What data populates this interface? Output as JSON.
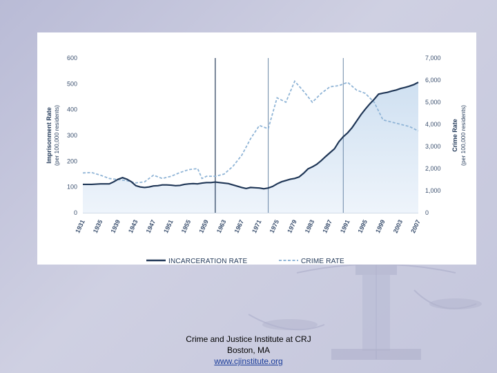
{
  "chart_data": {
    "type": "line",
    "y_left_ticks": [
      "600",
      "500",
      "400",
      "300",
      "200",
      "100",
      "0"
    ],
    "y_right_ticks": [
      "7,000",
      "6,000",
      "5,000",
      "4,000",
      "3,000",
      "2,000",
      "1,000",
      "0"
    ],
    "ylabel_left": "Imprisonment Rate",
    "ylabel_left_sub": "(per 100,000 residents)",
    "ylabel_right": "Crime Rate",
    "ylabel_right_sub": "(per 100,000 residents)",
    "ylim_left": [
      0,
      600
    ],
    "ylim_right": [
      0,
      7000
    ],
    "x_tick_labels": [
      "1931",
      "1935",
      "1939",
      "1943",
      "1947",
      "1951",
      "1955",
      "1959",
      "1963",
      "1967",
      "1971",
      "1975",
      "1979",
      "1983",
      "1987",
      "1991",
      "1995",
      "1999",
      "2003",
      "2007"
    ],
    "xlim": [
      1931,
      2007
    ],
    "reference_years": [
      1961,
      1973,
      1990
    ],
    "series": [
      {
        "name": "INCARCERATION RATE",
        "axis": "left",
        "style": "solid",
        "color": "#1f3656",
        "x": [
          1931,
          1933,
          1935,
          1937,
          1938,
          1939,
          1940,
          1941,
          1942,
          1943,
          1944,
          1945,
          1946,
          1947,
          1948,
          1949,
          1950,
          1951,
          1952,
          1953,
          1954,
          1955,
          1956,
          1957,
          1958,
          1959,
          1960,
          1961,
          1962,
          1963,
          1964,
          1965,
          1966,
          1967,
          1968,
          1969,
          1970,
          1971,
          1972,
          1973,
          1974,
          1975,
          1976,
          1977,
          1978,
          1979,
          1980,
          1981,
          1982,
          1983,
          1984,
          1985,
          1986,
          1987,
          1988,
          1989,
          1990,
          1991,
          1992,
          1993,
          1994,
          1995,
          1996,
          1997,
          1998,
          1999,
          2000,
          2001,
          2002,
          2003,
          2004,
          2005,
          2006,
          2007
        ],
        "y": [
          110,
          110,
          112,
          112,
          120,
          130,
          136,
          130,
          120,
          105,
          100,
          98,
          100,
          104,
          105,
          108,
          108,
          107,
          105,
          106,
          110,
          112,
          113,
          112,
          115,
          117,
          117,
          119,
          117,
          115,
          113,
          108,
          103,
          98,
          94,
          98,
          97,
          96,
          93,
          96,
          102,
          112,
          120,
          125,
          130,
          133,
          139,
          153,
          170,
          178,
          188,
          202,
          218,
          233,
          248,
          275,
          295,
          310,
          330,
          355,
          380,
          402,
          422,
          440,
          460,
          464,
          467,
          472,
          476,
          482,
          486,
          491,
          497,
          506
        ]
      },
      {
        "name": "CRIME RATE",
        "axis": "right",
        "style": "dashed",
        "color": "#8fb4d6",
        "x": [
          1931,
          1933,
          1935,
          1937,
          1939,
          1941,
          1943,
          1945,
          1947,
          1949,
          1951,
          1953,
          1955,
          1957,
          1958,
          1959,
          1961,
          1963,
          1965,
          1967,
          1969,
          1971,
          1973,
          1975,
          1977,
          1979,
          1981,
          1983,
          1985,
          1987,
          1989,
          1991,
          1993,
          1995,
          1997,
          1999,
          2001,
          2003,
          2005,
          2007
        ],
        "y": [
          1800,
          1820,
          1700,
          1550,
          1500,
          1450,
          1350,
          1400,
          1700,
          1550,
          1650,
          1820,
          1950,
          2000,
          1550,
          1650,
          1650,
          1750,
          2100,
          2600,
          3350,
          3950,
          3800,
          5200,
          5000,
          5950,
          5500,
          5000,
          5400,
          5700,
          5750,
          5900,
          5550,
          5400,
          5000,
          4200,
          4100,
          4000,
          3900,
          3700
        ]
      }
    ],
    "grid": false,
    "legend": "bottom"
  },
  "footer": {
    "line1": "Crime and Justice Institute at CRJ",
    "line2": "Boston, MA",
    "link": "www.cjinstitute.org"
  },
  "colors": {
    "incarceration": "#1f3656",
    "crime": "#8fb4d6",
    "area_top": "#d7e6f4",
    "area_bottom": "#ffffff"
  }
}
